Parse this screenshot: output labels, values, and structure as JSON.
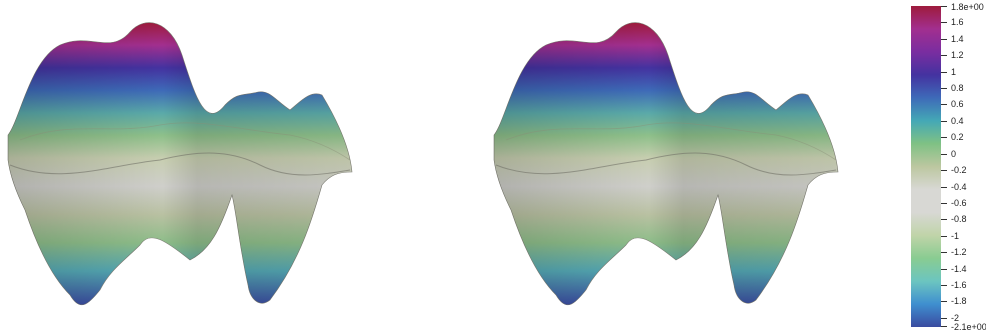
{
  "colorbar": {
    "max_label": "1.8e+00",
    "min_label": "-2.1e+00",
    "range": [
      -2.1,
      1.8
    ],
    "ticks": [
      "1.6",
      "1.4",
      "1.2",
      "1",
      "0.8",
      "0.6",
      "0.4",
      "0.2",
      "0",
      "-0.2",
      "-0.4",
      "-0.6",
      "-0.8",
      "-1",
      "-1.2",
      "-1.4",
      "-1.6",
      "-1.8",
      "-2"
    ],
    "colormap": [
      "#3a4ba0",
      "#3f8fcf",
      "#6cc5c0",
      "#89cc91",
      "#c0d4a9",
      "#d8d8d4",
      "#d8d8d4",
      "#bcc7a0",
      "#7fc184",
      "#44a8b6",
      "#3e6ab8",
      "#4432a0",
      "#7a2da0",
      "#a22f8f",
      "#9e1b3c"
    ]
  },
  "viewports": [
    {
      "name": "left-3d-view"
    },
    {
      "name": "right-3d-view"
    }
  ]
}
